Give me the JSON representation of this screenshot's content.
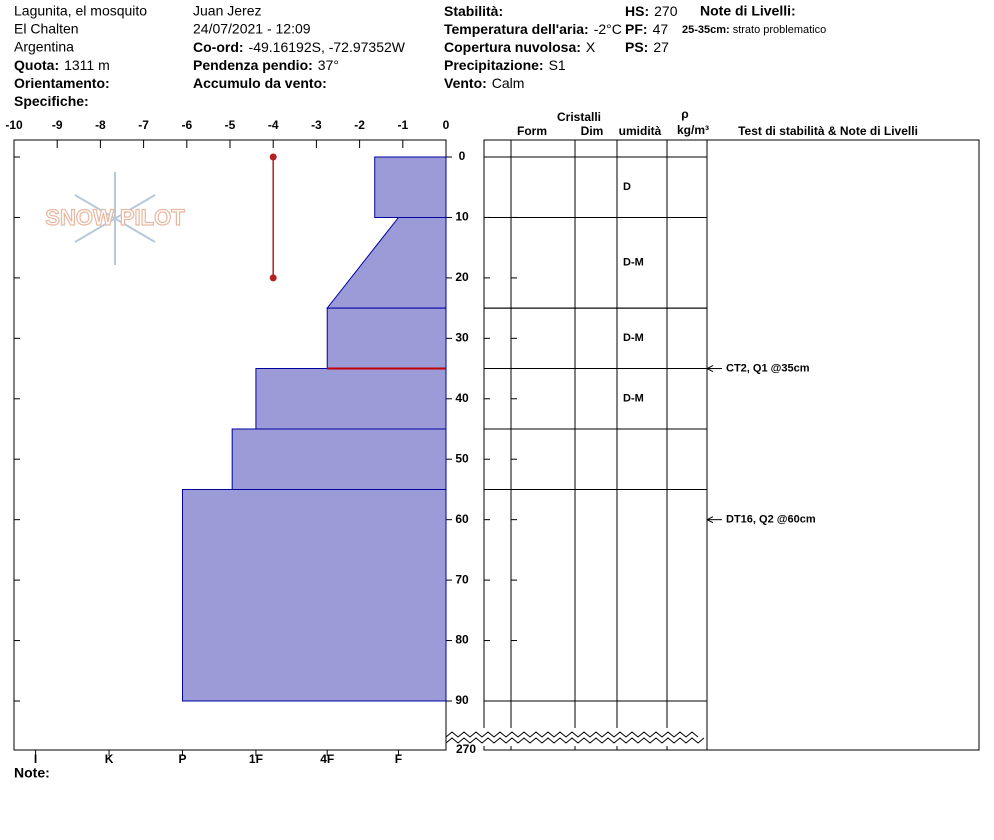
{
  "header": {
    "site": [
      "Lagunita, el mosquito",
      "El Chalten",
      "Argentina"
    ],
    "fields1": [
      {
        "label": "Quota:",
        "value": "1311 m"
      },
      {
        "label": "Orientamento:"
      },
      {
        "label": "Specifiche:"
      }
    ],
    "observer": "Juan Jerez",
    "datetime": "24/07/2021 - 12:09",
    "fields2": [
      {
        "label": "Co-ord:",
        "value": "-49.16192S, -72.97352W"
      },
      {
        "label": "Pendenza pendio:",
        "value": "37°"
      },
      {
        "label": "Accumulo da vento:"
      }
    ],
    "fields3": [
      {
        "label": "Stabilità:"
      },
      {
        "label": "Temperatura dell'aria:",
        "value": "-2°C"
      },
      {
        "label": "Copertura nuvolosa:",
        "value": "X"
      },
      {
        "label": "Precipitazione:",
        "value": "S1"
      },
      {
        "label": "Vento:",
        "value": "Calm"
      }
    ],
    "fields4": [
      {
        "label": "HS:",
        "value": "270"
      },
      {
        "label": "PF:",
        "value": "47"
      },
      {
        "label": "PS:",
        "value": "27"
      }
    ],
    "notes_title": "Note di Livelli:",
    "layer_note": {
      "label": "25-35cm:",
      "value": "strato problematico"
    }
  },
  "logo": "SNOW PILOT",
  "chart_data": {
    "type": "snow-profile",
    "xlim": [
      -10,
      0
    ],
    "xticks": [
      -10,
      -9,
      -8,
      -7,
      -6,
      -5,
      -4,
      -3,
      -2,
      -1,
      0
    ],
    "ylim": [
      0,
      90
    ],
    "yticks": [
      0,
      10,
      20,
      30,
      40,
      50,
      60,
      70,
      80,
      90
    ],
    "end_tick": 270,
    "hardness_ticks": [
      {
        "value": -9.5,
        "label": "I"
      },
      {
        "value": -7.8,
        "label": "K"
      },
      {
        "value": -6.1,
        "label": "P"
      },
      {
        "value": -4.4,
        "label": "1F"
      },
      {
        "value": -2.75,
        "label": "4F"
      },
      {
        "value": -1.1,
        "label": "F"
      }
    ],
    "color": "#9b9bd7",
    "layers": [
      {
        "top": 0,
        "bottom": 10,
        "hardness_top": -1.65,
        "hardness_bottom": -1.65,
        "moisture": "D"
      },
      {
        "top": 10,
        "bottom": 25,
        "hardness_top": -1.1,
        "hardness_bottom": -2.75,
        "moisture": "D-M"
      },
      {
        "top": 25,
        "bottom": 35,
        "hardness_top": -2.75,
        "hardness_bottom": -2.75,
        "moisture": "D-M"
      },
      {
        "top": 35,
        "bottom": 45,
        "hardness_top": -4.4,
        "hardness_bottom": -4.4,
        "moisture": "D-M"
      },
      {
        "top": 45,
        "bottom": 55,
        "hardness_top": -4.95,
        "hardness_bottom": -4.95
      },
      {
        "top": 55,
        "bottom": 90,
        "hardness_top": -6.1,
        "hardness_bottom": -6.1
      }
    ],
    "temperature": {
      "color": "#b22222",
      "x": [
        -4,
        -4
      ],
      "depth": [
        0,
        20
      ]
    },
    "critical_layer": {
      "depth": 35,
      "color": "#c00000"
    },
    "columns": {
      "group": "Cristalli",
      "form": "Form",
      "dim": "Dim",
      "moisture": "umidità",
      "density_symbol": "ρ",
      "density_unit": "kg/m³",
      "tests": "Test di stabilità & Note di Livelli"
    },
    "tests": [
      {
        "depth": 35,
        "label": "CT2, Q1 @35cm"
      },
      {
        "depth": 60,
        "label": "DT16, Q2 @60cm"
      }
    ],
    "note_label": "Note:"
  }
}
